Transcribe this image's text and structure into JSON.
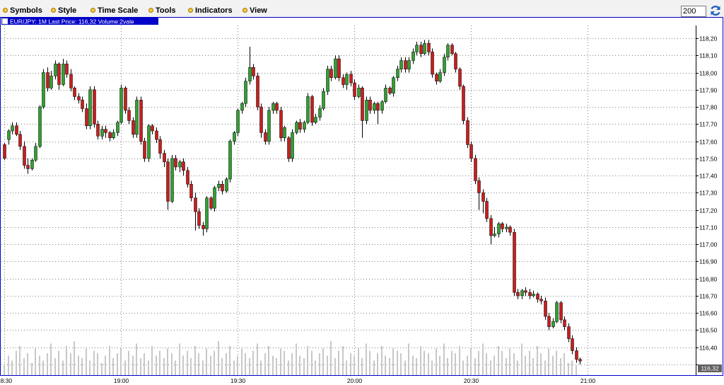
{
  "menu": {
    "items": [
      {
        "label": "Symbols",
        "icon": "dot-icon"
      },
      {
        "label": "Style",
        "icon": "dot-icon"
      },
      {
        "label": "Time Scale",
        "icon": "dot-icon"
      },
      {
        "label": "Tools",
        "icon": "dot-icon"
      },
      {
        "label": "Indicators",
        "icon": "dot-icon"
      },
      {
        "label": "View",
        "icon": "dot-icon"
      }
    ],
    "bars_value": "200",
    "refresh_icon": "refresh-icon"
  },
  "colors": {
    "up": "#32a032",
    "down": "#c81e1e",
    "header_bg": "#0000c8",
    "frame": "#0000c8",
    "grid": "#808080",
    "volume": "#c8c8c8",
    "last_price_bg": "#606060"
  },
  "chart_data": {
    "type": "candlestick",
    "header": "EUR/JPY: 1M Last Price: 116,32 Volume:2vale",
    "last_price_label": "116,32",
    "y_ticks": [
      "118,20",
      "118,10",
      "118,00",
      "117,90",
      "117,80",
      "117,70",
      "117,60",
      "117,50",
      "117,40",
      "117,30",
      "117,20",
      "117,10",
      "117,00",
      "116,90",
      "116,80",
      "116,70",
      "116,60",
      "116,50",
      "116,40",
      "116,30"
    ],
    "y_tick_values": [
      118.2,
      118.1,
      118.0,
      117.9,
      117.8,
      117.7,
      117.6,
      117.5,
      117.4,
      117.3,
      117.2,
      117.1,
      117.0,
      116.9,
      116.8,
      116.7,
      116.6,
      116.5,
      116.4,
      116.3
    ],
    "ylim": [
      116.28,
      118.24
    ],
    "x_ticks": [
      {
        "label": "18:30",
        "index": 0
      },
      {
        "label": "19:00",
        "index": 30
      },
      {
        "label": "19:30",
        "index": 60
      },
      {
        "label": "20:00",
        "index": 90
      },
      {
        "label": "20:30",
        "index": 120
      },
      {
        "label": "21:00",
        "index": 150
      }
    ],
    "grid": true,
    "candles": [
      [
        117.58,
        117.5,
        117.59,
        117.49
      ],
      [
        117.61,
        117.66,
        117.58,
        117.67
      ],
      [
        117.66,
        117.69,
        117.64,
        117.71
      ],
      [
        117.69,
        117.64,
        117.71,
        117.63
      ],
      [
        117.64,
        117.57,
        117.66,
        117.55
      ],
      [
        117.57,
        117.46,
        117.6,
        117.44
      ],
      [
        117.46,
        117.44,
        117.5,
        117.41
      ],
      [
        117.44,
        117.49,
        117.43,
        117.5
      ],
      [
        117.49,
        117.57,
        117.48,
        117.59
      ],
      [
        117.57,
        117.8,
        117.56,
        117.81
      ],
      [
        117.8,
        118.0,
        117.79,
        118.02
      ],
      [
        118.0,
        117.91,
        118.03,
        117.89
      ],
      [
        117.91,
        117.98,
        117.9,
        118.01
      ],
      [
        117.98,
        118.05,
        117.96,
        118.07
      ],
      [
        118.05,
        117.93,
        118.06,
        117.9
      ],
      [
        117.93,
        118.05,
        117.92,
        118.08
      ],
      [
        118.05,
        117.99,
        118.07,
        117.97
      ],
      [
        117.99,
        117.91,
        118.02,
        117.89
      ],
      [
        117.91,
        117.86,
        117.92,
        117.84
      ],
      [
        117.86,
        117.84,
        117.88,
        117.82
      ],
      [
        117.84,
        117.79,
        117.86,
        117.77
      ],
      [
        117.79,
        117.69,
        117.82,
        117.67
      ],
      [
        117.69,
        117.9,
        117.67,
        117.92
      ],
      [
        117.9,
        117.7,
        117.92,
        117.68
      ],
      [
        117.7,
        117.63,
        117.72,
        117.61
      ],
      [
        117.63,
        117.67,
        117.61,
        117.69
      ],
      [
        117.67,
        117.65,
        117.69,
        117.62
      ],
      [
        117.65,
        117.62,
        117.66,
        117.6
      ],
      [
        117.62,
        117.65,
        117.61,
        117.67
      ],
      [
        117.65,
        117.71,
        117.63,
        117.72
      ],
      [
        117.71,
        117.91,
        117.7,
        117.93
      ],
      [
        117.91,
        117.78,
        117.92,
        117.76
      ],
      [
        117.78,
        117.72,
        117.8,
        117.7
      ],
      [
        117.72,
        117.64,
        117.74,
        117.62
      ],
      [
        117.64,
        117.84,
        117.62,
        117.86
      ],
      [
        117.84,
        117.6,
        117.86,
        117.58
      ],
      [
        117.6,
        117.5,
        117.62,
        117.48
      ],
      [
        117.5,
        117.69,
        117.48,
        117.7
      ],
      [
        117.69,
        117.66,
        117.7,
        117.64
      ],
      [
        117.66,
        117.61,
        117.68,
        117.59
      ],
      [
        117.61,
        117.53,
        117.63,
        117.5
      ],
      [
        117.53,
        117.48,
        117.55,
        117.45
      ],
      [
        117.48,
        117.25,
        117.5,
        117.2
      ],
      [
        117.25,
        117.5,
        117.24,
        117.52
      ],
      [
        117.5,
        117.45,
        117.52,
        117.43
      ],
      [
        117.45,
        117.48,
        117.42,
        117.49
      ],
      [
        117.48,
        117.43,
        117.5,
        117.4
      ],
      [
        117.43,
        117.35,
        117.45,
        117.33
      ],
      [
        117.35,
        117.27,
        117.37,
        117.25
      ],
      [
        117.27,
        117.19,
        117.3,
        117.08
      ],
      [
        117.19,
        117.11,
        117.21,
        117.09
      ],
      [
        117.11,
        117.09,
        117.13,
        117.05
      ],
      [
        117.09,
        117.27,
        117.07,
        117.28
      ],
      [
        117.27,
        117.21,
        117.28,
        117.2
      ],
      [
        117.21,
        117.33,
        117.19,
        117.34
      ],
      [
        117.33,
        117.35,
        117.31,
        117.37
      ],
      [
        117.35,
        117.31,
        117.37,
        117.29
      ],
      [
        117.31,
        117.38,
        117.3,
        117.39
      ],
      [
        117.38,
        117.6,
        117.36,
        117.61
      ],
      [
        117.6,
        117.65,
        117.58,
        117.66
      ],
      [
        117.65,
        117.78,
        117.63,
        117.79
      ],
      [
        117.78,
        117.82,
        117.76,
        117.83
      ],
      [
        117.82,
        117.95,
        117.8,
        117.97
      ],
      [
        117.95,
        118.03,
        117.93,
        118.15
      ],
      [
        118.03,
        117.98,
        118.05,
        117.96
      ],
      [
        117.98,
        117.8,
        118.0,
        117.78
      ],
      [
        117.8,
        117.65,
        117.82,
        117.62
      ],
      [
        117.65,
        117.6,
        117.67,
        117.58
      ],
      [
        117.6,
        117.78,
        117.58,
        117.8
      ],
      [
        117.78,
        117.82,
        117.76,
        117.83
      ],
      [
        117.82,
        117.78,
        117.83,
        117.76
      ],
      [
        117.78,
        117.62,
        117.8,
        117.6
      ],
      [
        117.62,
        117.68,
        117.6,
        117.69
      ],
      [
        117.62,
        117.5,
        117.63,
        117.48
      ],
      [
        117.5,
        117.65,
        117.48,
        117.67
      ],
      [
        117.65,
        117.71,
        117.64,
        117.72
      ],
      [
        117.71,
        117.67,
        117.73,
        117.65
      ],
      [
        117.67,
        117.71,
        117.65,
        117.72
      ],
      [
        117.71,
        117.86,
        117.7,
        117.88
      ],
      [
        117.86,
        117.71,
        117.87,
        117.69
      ],
      [
        117.71,
        117.74,
        117.7,
        117.76
      ],
      [
        117.74,
        117.79,
        117.72,
        117.81
      ],
      [
        117.79,
        117.89,
        117.78,
        117.91
      ],
      [
        117.89,
        118.02,
        117.87,
        118.04
      ],
      [
        118.02,
        117.97,
        118.04,
        117.95
      ],
      [
        117.97,
        118.08,
        117.96,
        118.1
      ],
      [
        118.08,
        117.97,
        118.1,
        117.95
      ],
      [
        117.97,
        117.93,
        117.99,
        117.91
      ],
      [
        117.93,
        117.99,
        117.9,
        118.0
      ],
      [
        117.99,
        117.94,
        118.01,
        117.92
      ],
      [
        117.94,
        117.86,
        117.96,
        117.84
      ],
      [
        117.86,
        117.91,
        117.85,
        117.93
      ],
      [
        117.91,
        117.72,
        117.92,
        117.62
      ],
      [
        117.72,
        117.84,
        117.7,
        117.86
      ],
      [
        117.84,
        117.78,
        117.86,
        117.76
      ],
      [
        117.78,
        117.82,
        117.76,
        117.83
      ],
      [
        117.82,
        117.78,
        117.83,
        117.7
      ],
      [
        117.78,
        117.83,
        117.76,
        117.84
      ],
      [
        117.83,
        117.91,
        117.82,
        117.93
      ],
      [
        117.91,
        117.88,
        117.92,
        117.87
      ],
      [
        117.88,
        117.97,
        117.86,
        117.98
      ],
      [
        117.97,
        118.02,
        117.95,
        118.04
      ],
      [
        118.02,
        118.07,
        118.0,
        118.09
      ],
      [
        118.07,
        118.02,
        118.09,
        118.0
      ],
      [
        118.02,
        118.07,
        118.0,
        118.09
      ],
      [
        118.07,
        118.12,
        118.05,
        118.14
      ],
      [
        118.12,
        118.16,
        118.1,
        118.18
      ],
      [
        118.16,
        118.11,
        118.18,
        118.09
      ],
      [
        118.11,
        118.17,
        118.1,
        118.19
      ],
      [
        118.17,
        118.12,
        118.19,
        118.1
      ],
      [
        118.12,
        117.99,
        118.14,
        117.97
      ],
      [
        117.99,
        117.95,
        118.0,
        117.93
      ],
      [
        117.95,
        118.0,
        117.94,
        118.02
      ],
      [
        118.0,
        118.09,
        117.98,
        118.11
      ],
      [
        118.09,
        118.16,
        118.07,
        118.17
      ],
      [
        118.16,
        118.11,
        118.17,
        118.1
      ],
      [
        118.11,
        118.02,
        118.12,
        118.0
      ],
      [
        118.02,
        117.92,
        118.03,
        117.9
      ],
      [
        117.92,
        117.72,
        117.93,
        117.7
      ],
      [
        117.72,
        117.58,
        117.74,
        117.56
      ],
      [
        117.58,
        117.5,
        117.6,
        117.48
      ],
      [
        117.5,
        117.37,
        117.52,
        117.35
      ],
      [
        117.37,
        117.3,
        117.39,
        117.2
      ],
      [
        117.3,
        117.25,
        117.32,
        117.18
      ],
      [
        117.25,
        117.15,
        117.27,
        117.13
      ],
      [
        117.15,
        117.05,
        117.17,
        117.0
      ],
      [
        117.05,
        117.06,
        117.04,
        117.1
      ],
      [
        117.06,
        117.12,
        117.04,
        117.13
      ],
      [
        117.12,
        117.09,
        117.13,
        117.07
      ],
      [
        117.09,
        117.1,
        117.07,
        117.12
      ],
      [
        117.1,
        117.07,
        117.11,
        117.05
      ],
      [
        117.07,
        116.72,
        117.09,
        116.7
      ],
      [
        116.72,
        116.7,
        116.74,
        116.68
      ],
      [
        116.7,
        116.73,
        116.68,
        116.74
      ],
      [
        116.73,
        116.72,
        116.75,
        116.7
      ],
      [
        116.72,
        116.7,
        116.74,
        116.68
      ],
      [
        116.7,
        116.71,
        116.69,
        116.73
      ],
      [
        116.71,
        116.68,
        116.72,
        116.66
      ],
      [
        116.68,
        116.67,
        116.7,
        116.65
      ],
      [
        116.67,
        116.58,
        116.69,
        116.56
      ],
      [
        116.58,
        116.52,
        116.6,
        116.5
      ],
      [
        116.52,
        116.55,
        116.51,
        116.57
      ],
      [
        116.55,
        116.66,
        116.54,
        116.67
      ],
      [
        116.66,
        116.56,
        116.67,
        116.54
      ],
      [
        116.56,
        116.52,
        116.58,
        116.5
      ],
      [
        116.52,
        116.45,
        116.54,
        116.43
      ],
      [
        116.45,
        116.38,
        116.47,
        116.36
      ],
      [
        116.38,
        116.33,
        116.4,
        116.31
      ],
      [
        116.33,
        116.32,
        116.34,
        116.3
      ]
    ],
    "volumes": [
      4,
      8,
      6,
      10,
      12,
      7,
      9,
      5,
      11,
      8,
      6,
      9,
      13,
      7,
      10,
      6,
      12,
      9,
      14,
      8,
      7,
      11,
      6,
      10,
      9,
      5,
      8,
      12,
      7,
      9,
      11,
      6,
      10,
      8,
      13,
      7,
      9,
      6,
      12,
      8,
      10,
      7,
      11,
      9,
      6,
      13,
      8,
      10,
      7,
      12,
      9,
      6,
      11,
      8,
      10,
      14,
      7,
      9,
      12,
      6,
      8,
      11,
      9,
      7,
      10,
      13,
      6,
      9,
      12,
      8,
      7,
      11,
      10,
      6,
      9,
      13,
      8,
      7,
      12,
      10,
      6,
      9,
      11,
      8,
      14,
      7,
      10,
      12,
      6,
      9,
      8,
      11,
      7,
      13,
      10,
      6,
      9,
      12,
      8,
      7,
      11,
      10,
      9,
      6,
      13,
      8,
      7,
      12,
      10,
      9,
      6,
      11,
      8,
      13,
      7,
      10,
      9,
      12,
      6,
      8,
      11,
      7,
      10,
      13,
      9,
      6,
      8,
      12,
      10,
      7,
      11,
      9,
      6,
      13,
      8,
      10,
      7,
      12,
      9,
      6,
      11,
      8,
      10,
      7,
      9,
      5,
      6,
      4
    ]
  }
}
